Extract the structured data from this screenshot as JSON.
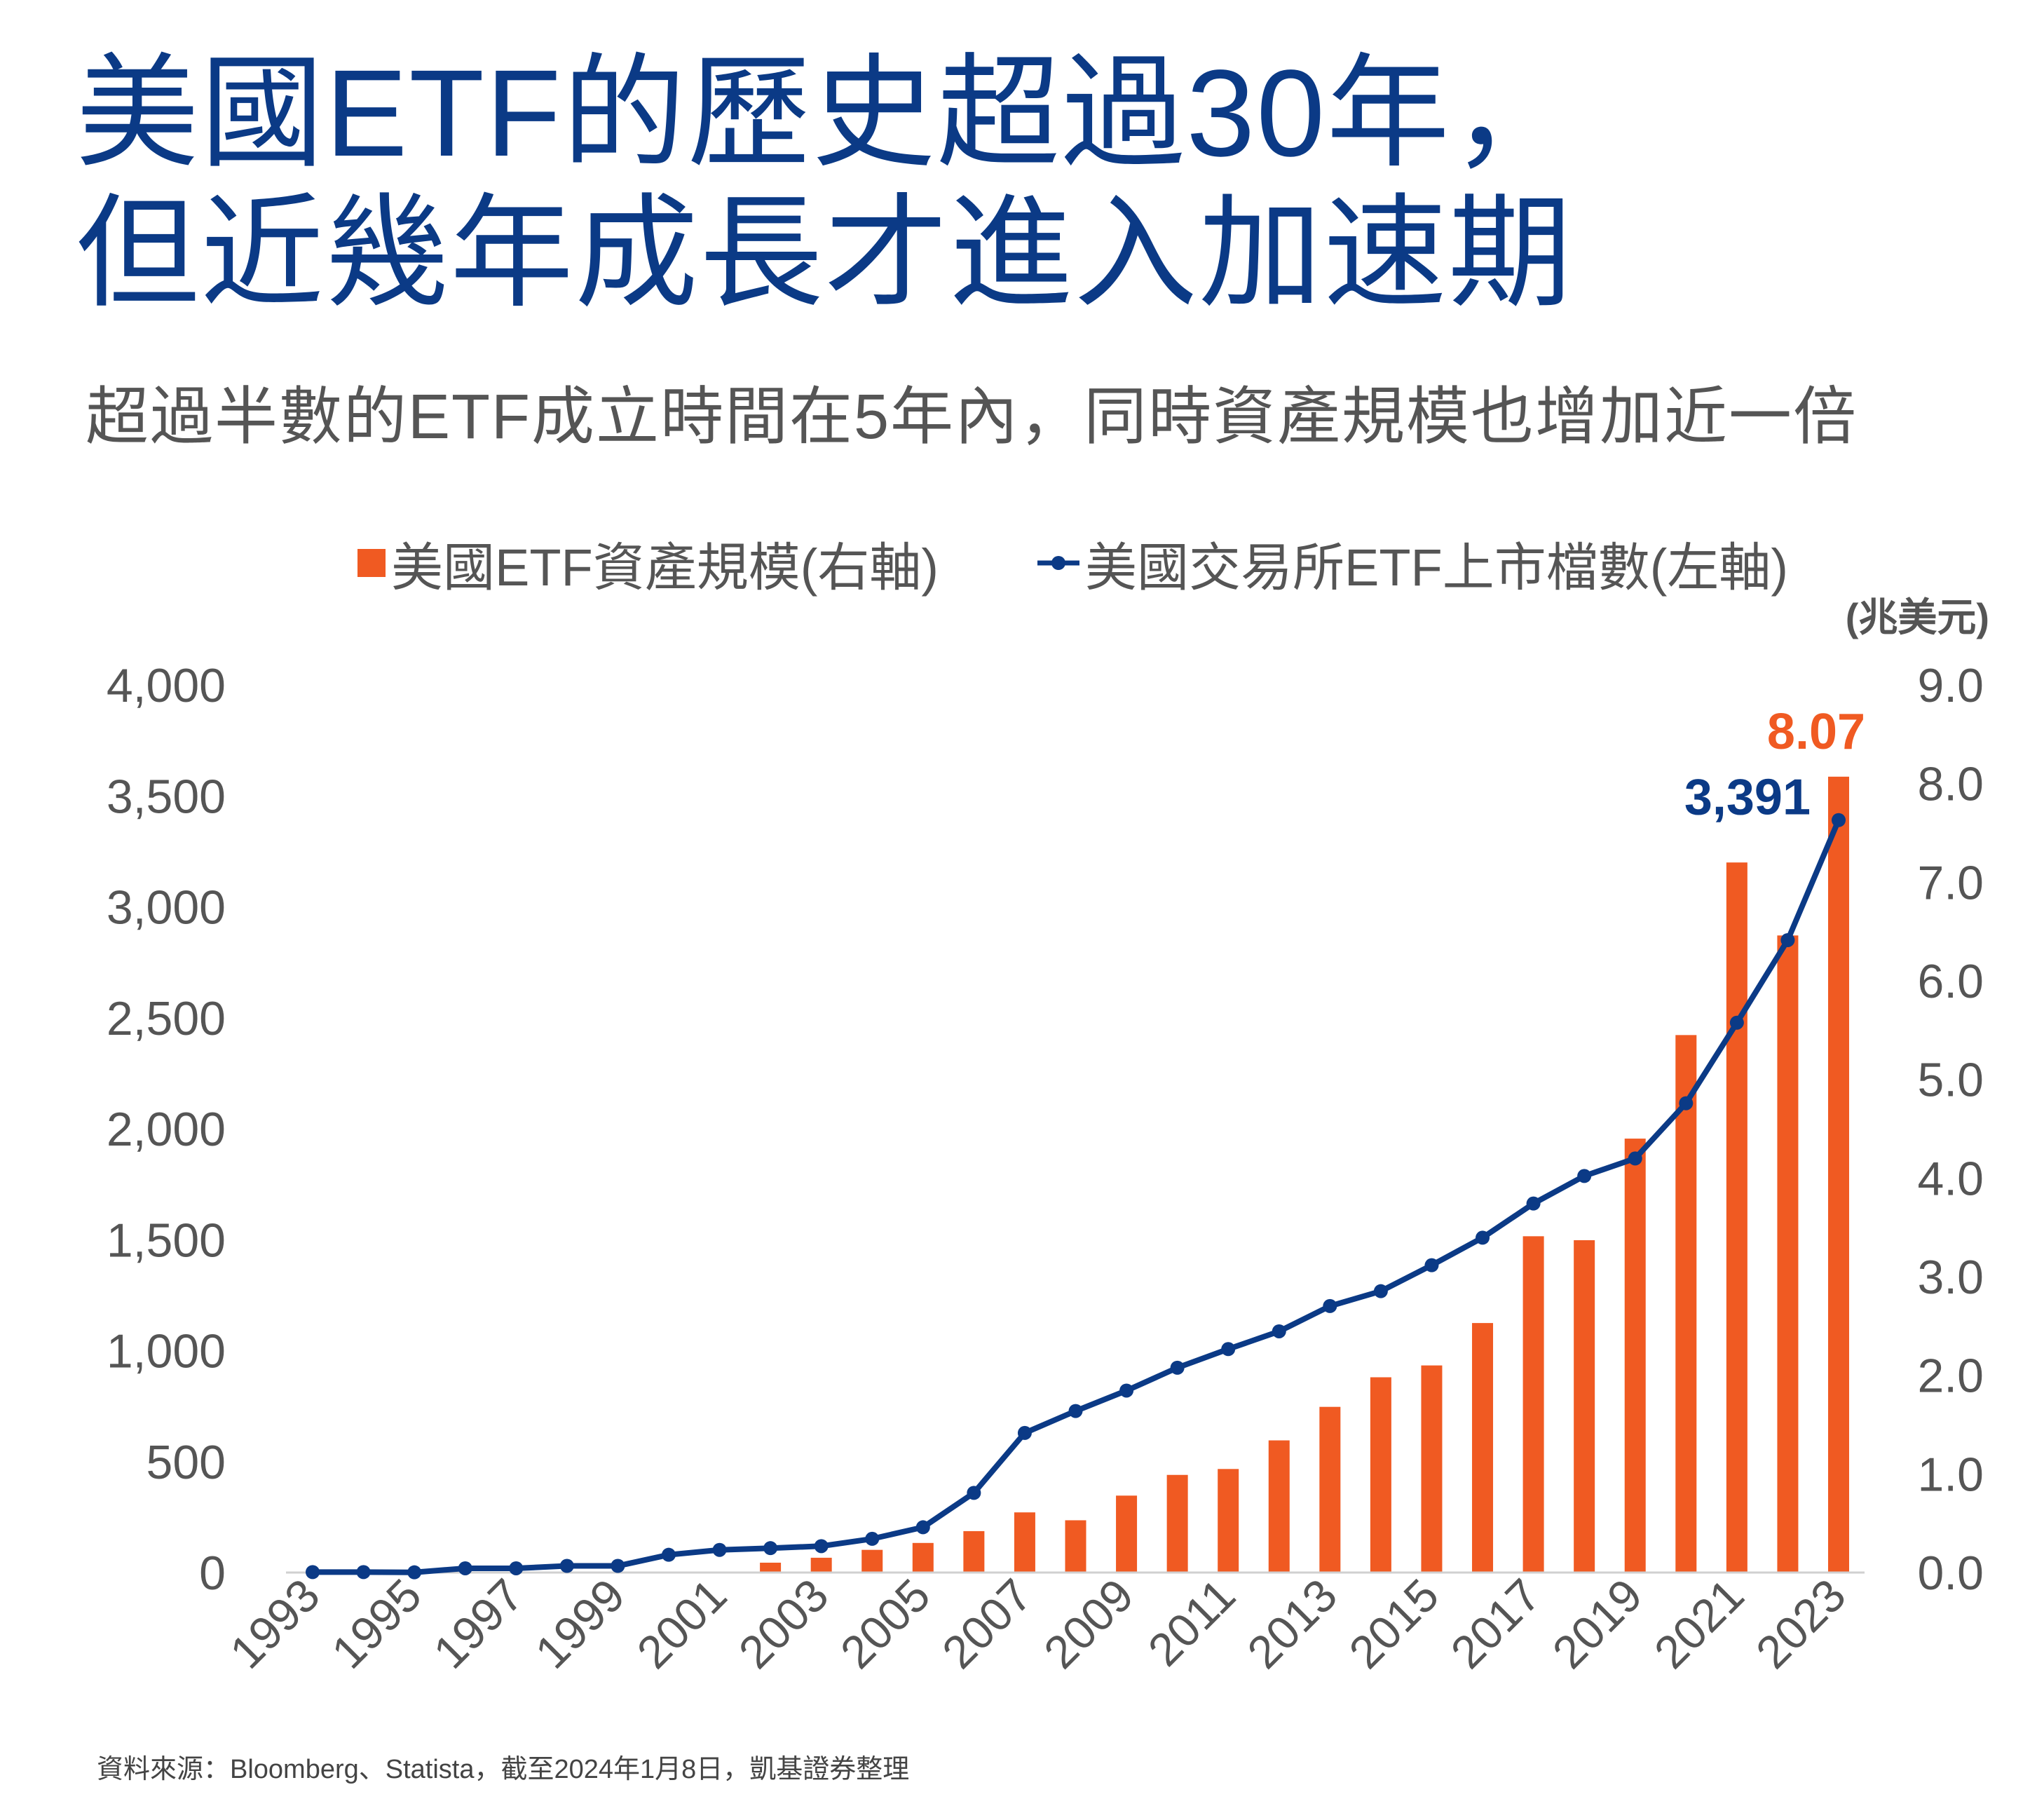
{
  "title_lines": [
    "美國ETF的歷史超過30年，",
    "但近幾年成長才進入加速期"
  ],
  "subtitle": "超過半數的ETF成立時間在5年內，同時資產規模也增加近一倍",
  "source": "資料來源：Bloomberg、Statista，截至2024年1月8日，凱基證券整理",
  "colors": {
    "title": "#0b3a86",
    "bar": "#f05a22",
    "line": "#0b3a86",
    "text": "#555555"
  },
  "chart_data": {
    "type": "bar",
    "categories": [
      "1993",
      "1994",
      "1995",
      "1996",
      "1997",
      "1998",
      "1999",
      "2000",
      "2001",
      "2002",
      "2003",
      "2004",
      "2005",
      "2006",
      "2007",
      "2008",
      "2009",
      "2010",
      "2011",
      "2012",
      "2013",
      "2014",
      "2015",
      "2016",
      "2017",
      "2018",
      "2019",
      "2020",
      "2021",
      "2022",
      "2023"
    ],
    "x_tick_labels": [
      "1993",
      "1995",
      "1997",
      "1999",
      "2001",
      "2003",
      "2005",
      "2007",
      "2009",
      "2011",
      "2013",
      "2015",
      "2017",
      "2019",
      "2021",
      "2023"
    ],
    "series": [
      {
        "name": "美國ETF資產規模(右軸)",
        "type": "bar",
        "axis": "right",
        "values": [
          0,
          0,
          0,
          0,
          0,
          0,
          0,
          0,
          0,
          0.1,
          0.15,
          0.23,
          0.3,
          0.42,
          0.61,
          0.53,
          0.78,
          0.99,
          1.05,
          1.34,
          1.68,
          1.98,
          2.1,
          2.53,
          3.41,
          3.37,
          4.4,
          5.45,
          7.2,
          6.46,
          8.07
        ]
      },
      {
        "name": "美國交易所ETF上市檔數(左軸)",
        "type": "line",
        "axis": "left",
        "values": [
          2,
          2,
          1,
          19,
          19,
          30,
          30,
          80,
          102,
          110,
          119,
          152,
          204,
          359,
          629,
          728,
          820,
          923,
          1007,
          1087,
          1201,
          1268,
          1385,
          1509,
          1663,
          1787,
          1866,
          2115,
          2478,
          2850,
          3391
        ]
      }
    ],
    "y_left": {
      "min": 0,
      "max": 4000,
      "ticks": [
        "0",
        "500",
        "1,000",
        "1,500",
        "2,000",
        "2,500",
        "3,000",
        "3,500",
        "4,000"
      ]
    },
    "y_right": {
      "min": 0,
      "max": 9,
      "unit": "(兆美元)",
      "ticks": [
        "0.0",
        "1.0",
        "2.0",
        "3.0",
        "4.0",
        "5.0",
        "6.0",
        "7.0",
        "8.0",
        "9.0"
      ]
    },
    "annotations": {
      "bar_last": "8.07",
      "line_last": "3,391"
    },
    "legend_position": "top"
  }
}
